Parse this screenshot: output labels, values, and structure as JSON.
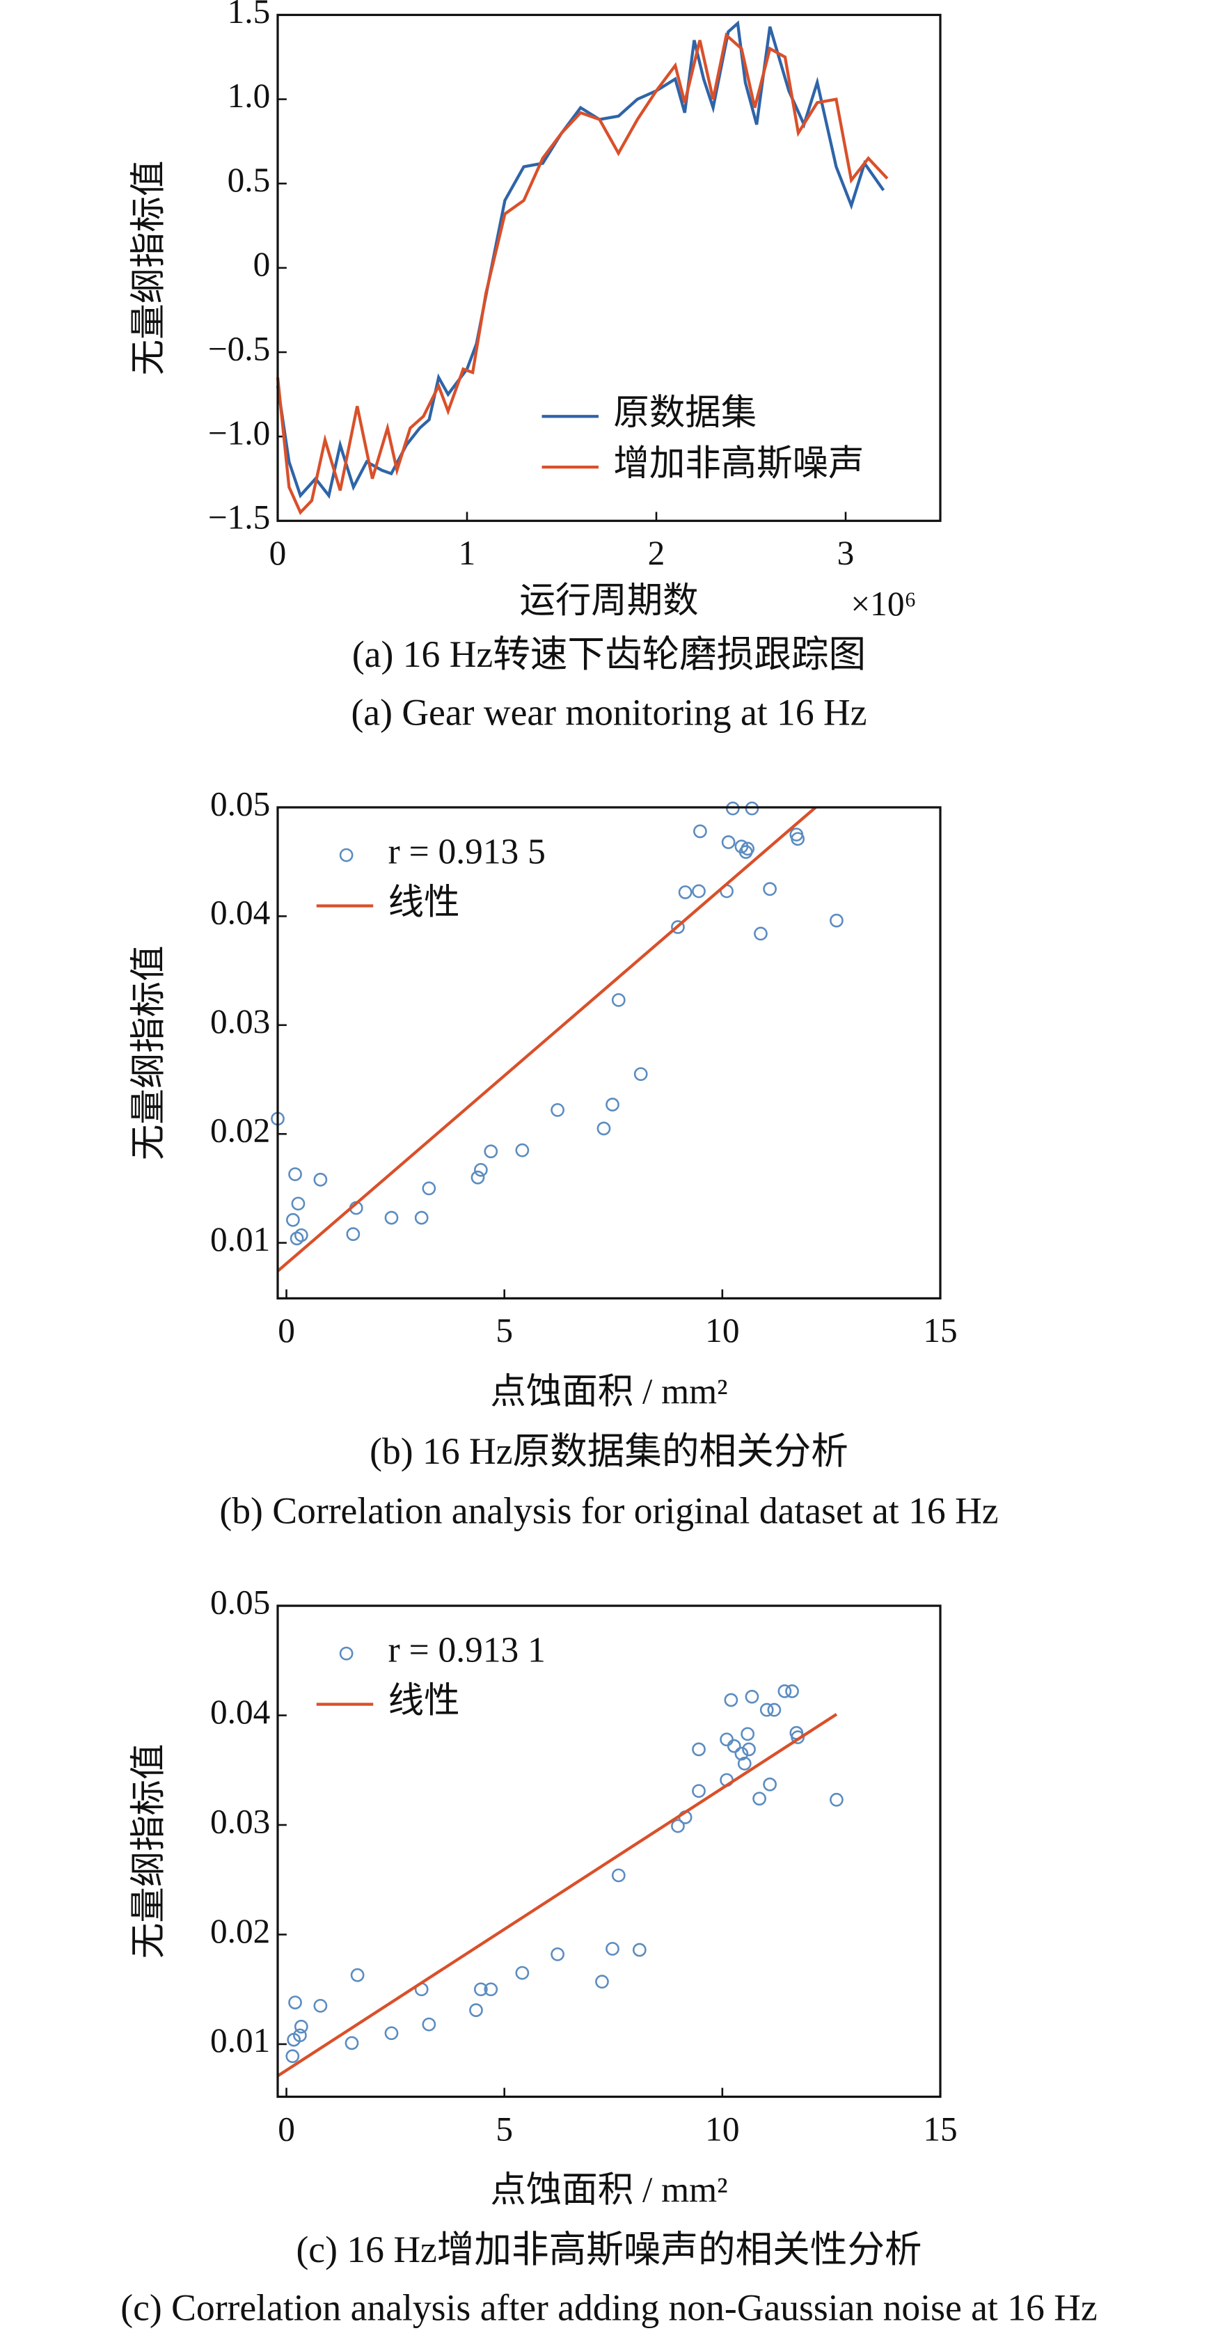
{
  "chart_data": [
    {
      "type": "line",
      "ylabel": "无量纲指标值",
      "xlabel": "运行周期数",
      "x_multiplier": "×10⁶",
      "caption_cn": "(a)  16 Hz转速下齿轮磨损跟踪图",
      "caption_en": "(a)  Gear wear monitoring at 16 Hz",
      "xlim": [
        0,
        3.5
      ],
      "xticks": [
        0,
        1,
        2,
        3
      ],
      "ylim": [
        -1.5,
        1.5
      ],
      "yticks": [
        {
          "value": -1.5,
          "label": "−1.5"
        },
        {
          "value": -1,
          "label": "−1.0"
        },
        {
          "value": -0.5,
          "label": "−0.5"
        },
        0,
        0.5,
        {
          "value": 1,
          "label": "1.0"
        },
        1.5
      ],
      "legend": "lower right",
      "series": [
        {
          "name": "原数据集",
          "type": "line",
          "color": "#2e64a8",
          "x": [
            0,
            0.06,
            0.12,
            0.2,
            0.27,
            0.33,
            0.4,
            0.47,
            0.55,
            0.6,
            0.68,
            0.75,
            0.8,
            0.85,
            0.9,
            1.0,
            1.05,
            1.12,
            1.2,
            1.3,
            1.4,
            1.5,
            1.6,
            1.7,
            1.8,
            1.9,
            2.0,
            2.1,
            2.15,
            2.2,
            2.25,
            2.3,
            2.38,
            2.43,
            2.47,
            2.53,
            2.6,
            2.7,
            2.78,
            2.85,
            2.95,
            3.03,
            3.1,
            3.2
          ],
          "values": [
            -0.7,
            -1.15,
            -1.35,
            -1.25,
            -1.35,
            -1.05,
            -1.3,
            -1.15,
            -1.2,
            -1.22,
            -1.05,
            -0.95,
            -0.9,
            -0.65,
            -0.75,
            -0.6,
            -0.45,
            -0.05,
            0.4,
            0.6,
            0.62,
            0.8,
            0.95,
            0.88,
            0.9,
            1.0,
            1.05,
            1.12,
            0.92,
            1.35,
            1.12,
            0.95,
            1.4,
            1.45,
            1.1,
            0.85,
            1.43,
            1.05,
            0.85,
            1.1,
            0.6,
            0.37,
            0.62,
            0.46
          ]
        },
        {
          "name": "增加非高斯噪声",
          "type": "line",
          "color": "#d9502a",
          "x": [
            0,
            0.06,
            0.12,
            0.18,
            0.25,
            0.33,
            0.42,
            0.5,
            0.58,
            0.63,
            0.7,
            0.77,
            0.85,
            0.9,
            0.98,
            1.03,
            1.1,
            1.2,
            1.3,
            1.4,
            1.5,
            1.6,
            1.7,
            1.8,
            1.9,
            2.0,
            2.1,
            2.15,
            2.23,
            2.3,
            2.37,
            2.45,
            2.52,
            2.6,
            2.68,
            2.75,
            2.85,
            2.95,
            3.03,
            3.12,
            3.22
          ],
          "values": [
            -0.65,
            -1.3,
            -1.45,
            -1.38,
            -1.02,
            -1.32,
            -0.82,
            -1.25,
            -0.95,
            -1.2,
            -0.95,
            -0.88,
            -0.7,
            -0.85,
            -0.6,
            -0.62,
            -0.15,
            0.32,
            0.4,
            0.65,
            0.8,
            0.92,
            0.88,
            0.68,
            0.88,
            1.05,
            1.2,
            0.98,
            1.35,
            1.0,
            1.38,
            1.3,
            0.95,
            1.3,
            1.25,
            0.8,
            0.98,
            1.0,
            0.52,
            0.65,
            0.53
          ]
        }
      ]
    },
    {
      "type": "scatter",
      "ylabel": "无量纲指标值",
      "xlabel": "点蚀面积 / mm²",
      "caption_cn": "(b)  16 Hz原数据集的相关分析",
      "caption_en": "(b)  Correlation analysis for original dataset at 16 Hz",
      "xlim": [
        -0.2,
        15
      ],
      "xticks": [
        0,
        5,
        10,
        15
      ],
      "ylim": [
        0.0049,
        0.05
      ],
      "yticks": [
        0.01,
        0.02,
        0.03,
        0.04,
        0.05
      ],
      "legend": "upper left",
      "series": [
        {
          "name": "r = 0.913 5",
          "type": "scatter",
          "color": "#5b8cc0",
          "x": [
            -0.2,
            0.2,
            0.15,
            0.27,
            0.24,
            0.34,
            0.78,
            1.53,
            1.6,
            2.41,
            3.1,
            3.27,
            4.39,
            4.46,
            4.69,
            5.41,
            6.22,
            7.28,
            7.48,
            7.62,
            8.13,
            8.98,
            9.15,
            9.46,
            9.49,
            10.1,
            10.14,
            10.24,
            10.44,
            10.54,
            10.58,
            10.68,
            10.88,
            11.09,
            11.7,
            11.73,
            12.62
          ],
          "values": [
            0.0214,
            0.0163,
            0.0121,
            0.0136,
            0.0104,
            0.0107,
            0.0158,
            0.0108,
            0.0132,
            0.0123,
            0.0123,
            0.015,
            0.016,
            0.0167,
            0.0184,
            0.0185,
            0.0222,
            0.0205,
            0.0227,
            0.0323,
            0.0255,
            0.039,
            0.0422,
            0.0423,
            0.0478,
            0.0423,
            0.0468,
            0.0499,
            0.0464,
            0.0459,
            0.0462,
            0.0499,
            0.0384,
            0.0425,
            0.0475,
            0.0471,
            0.0396
          ]
        },
        {
          "name": "线性",
          "type": "line",
          "color": "#d9502a",
          "x": [
            -0.2,
            12.14
          ],
          "values": [
            0.0074,
            0.05
          ]
        }
      ]
    },
    {
      "type": "scatter",
      "ylabel": "无量纲指标值",
      "xlabel": "点蚀面积 / mm²",
      "caption_cn": "(c)  16 Hz增加非高斯噪声的相关性分析",
      "caption_en": "(c)  Correlation analysis after adding non-Gaussian noise at 16 Hz",
      "xlim": [
        -0.2,
        15
      ],
      "xticks": [
        0,
        5,
        10,
        15
      ],
      "ylim": [
        0.0052,
        0.05
      ],
      "yticks": [
        0.01,
        0.02,
        0.03,
        0.04,
        0.05
      ],
      "legend": "upper left",
      "series": [
        {
          "name": "r = 0.913 1",
          "type": "scatter",
          "color": "#5b8cc0",
          "x": [
            0.17,
            0.2,
            0.14,
            0.31,
            0.34,
            0.78,
            1.5,
            1.63,
            2.41,
            3.1,
            3.27,
            4.35,
            4.46,
            4.69,
            5.41,
            6.22,
            7.24,
            7.48,
            7.62,
            8.1,
            8.98,
            9.15,
            9.46,
            9.46,
            10.1,
            10.1,
            10.2,
            10.27,
            10.44,
            10.51,
            10.58,
            10.61,
            10.68,
            10.85,
            11.02,
            11.09,
            11.19,
            11.43,
            11.6,
            11.7,
            11.73,
            12.62
          ],
          "values": [
            0.0104,
            0.0138,
            0.0089,
            0.0108,
            0.0116,
            0.0135,
            0.0101,
            0.0163,
            0.011,
            0.015,
            0.0118,
            0.0131,
            0.015,
            0.015,
            0.0165,
            0.0182,
            0.0157,
            0.0187,
            0.0254,
            0.0186,
            0.0299,
            0.0307,
            0.0331,
            0.0369,
            0.0341,
            0.0378,
            0.0414,
            0.0372,
            0.0365,
            0.0356,
            0.0383,
            0.0369,
            0.0417,
            0.0324,
            0.0405,
            0.0337,
            0.0405,
            0.0422,
            0.0422,
            0.0384,
            0.038,
            0.0323
          ]
        },
        {
          "name": "线性",
          "type": "line",
          "color": "#d9502a",
          "x": [
            -0.2,
            12.62
          ],
          "values": [
            0.0071,
            0.0401
          ]
        }
      ]
    }
  ]
}
